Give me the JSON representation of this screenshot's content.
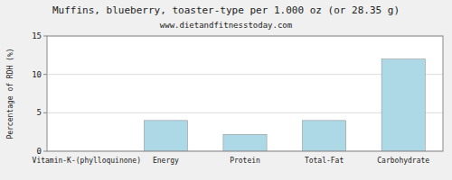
{
  "chart_data": {
    "type": "bar",
    "title": "Muffins, blueberry, toaster-type per 1.000 oz (or 28.35 g)",
    "subtitle": "www.dietandfitnesstoday.com",
    "categories": [
      "Vitamin-K-(phylloquinone)",
      "Energy",
      "Protein",
      "Total-Fat",
      "Carbohydrate"
    ],
    "values": [
      0,
      4.0,
      2.2,
      4.0,
      12.0
    ],
    "color": "#add8e6",
    "ylabel": "Percentage of RDH (%)",
    "ylim": [
      0,
      15
    ],
    "yticks": [
      0,
      5,
      10,
      15
    ],
    "grid": true
  }
}
